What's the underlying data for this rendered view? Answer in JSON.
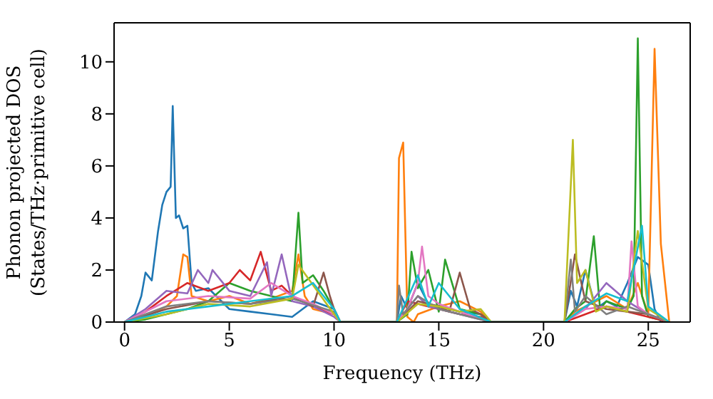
{
  "chart_data": {
    "type": "line",
    "xlabel": "Frequency (THz)",
    "ylabel": "Phonon projected DOS\n(States/THz·primitive cell)",
    "xlim": [
      -0.5,
      27
    ],
    "xticks": [
      0,
      5,
      10,
      15,
      20,
      25
    ],
    "ylim": [
      0,
      11.5
    ],
    "yticks": [
      0,
      2,
      4,
      6,
      8,
      10
    ],
    "legend": false,
    "marker": "none",
    "line_style": "solid",
    "series": [
      {
        "color": "#1f77b4",
        "x": [
          0,
          0.5,
          0.8,
          1,
          1.3,
          1.6,
          1.8,
          2,
          2.2,
          2.3,
          2.45,
          2.6,
          2.8,
          3,
          3.2,
          3.4,
          4,
          5,
          6,
          7,
          8,
          9,
          10,
          10.3,
          13,
          13.2,
          13.5,
          14,
          14.5,
          15,
          15.5,
          16,
          17,
          17.5,
          21,
          21.3,
          21.6,
          22,
          22.5,
          23,
          23.5,
          24,
          24.5,
          25,
          25.3,
          25.6,
          26
        ],
        "values": [
          0,
          0.3,
          1,
          1.9,
          1.6,
          3.5,
          4.5,
          5,
          5.2,
          8.3,
          4,
          4.1,
          3.6,
          3.7,
          1.5,
          1.2,
          1.3,
          0.5,
          0.4,
          0.3,
          0.2,
          0.8,
          0.5,
          0,
          0,
          1,
          0.5,
          1.5,
          0.7,
          0.6,
          0.5,
          0.4,
          0.3,
          0,
          0,
          1.2,
          0.6,
          2,
          0.5,
          0.8,
          0.6,
          1.5,
          2.5,
          2.2,
          0.5,
          0,
          0
        ]
      },
      {
        "color": "#ff7f0e",
        "x": [
          0,
          1,
          2,
          2.5,
          2.8,
          3,
          3.2,
          4,
          5,
          6,
          7,
          8,
          8.3,
          8.6,
          9,
          10,
          10.3,
          13,
          13.1,
          13.3,
          13.5,
          13.8,
          14,
          15,
          16,
          17,
          17.5,
          21,
          21.5,
          22,
          23,
          24,
          24.5,
          25,
          25.3,
          25.6,
          26
        ],
        "values": [
          0,
          0.2,
          0.6,
          1,
          2.6,
          2.5,
          1,
          0.8,
          1,
          0.7,
          0.9,
          1.2,
          2.6,
          1,
          0.5,
          0.3,
          0,
          0,
          6.3,
          6.9,
          0.2,
          0,
          0.3,
          0.6,
          0.8,
          0.4,
          0,
          0,
          0.4,
          0.6,
          1,
          0.5,
          1.5,
          0.3,
          10.5,
          3,
          0
        ]
      },
      {
        "color": "#2ca02c",
        "x": [
          0,
          1,
          2,
          3,
          4,
          5,
          6,
          7,
          8,
          8.3,
          8.5,
          9,
          9.5,
          10,
          10.3,
          13,
          13.5,
          13.7,
          14,
          14.5,
          15,
          15.3,
          16,
          17,
          17.5,
          21,
          21.5,
          22,
          22.4,
          22.7,
          23,
          24,
          24.3,
          24.5,
          24.7,
          25,
          26
        ],
        "values": [
          0,
          0.1,
          0.3,
          0.5,
          0.8,
          1.5,
          1.2,
          1,
          0.8,
          4.2,
          1.5,
          1.8,
          1.2,
          0.5,
          0,
          0,
          0.3,
          2.7,
          1.3,
          2,
          0.4,
          2.4,
          0.5,
          0.3,
          0,
          0,
          0.5,
          0.8,
          3.3,
          0.5,
          0.8,
          0.5,
          1,
          10.9,
          1,
          0.2,
          0
        ]
      },
      {
        "color": "#d62728",
        "x": [
          0,
          1,
          2,
          3,
          4,
          5,
          5.5,
          6,
          6.5,
          7,
          7.5,
          8,
          9,
          10,
          10.3,
          13,
          13.5,
          14,
          15,
          16,
          17,
          17.5,
          21,
          22,
          23,
          24,
          25,
          26
        ],
        "values": [
          0,
          0.4,
          1,
          1.5,
          1.2,
          1.5,
          2,
          1.6,
          2.7,
          1.2,
          1.4,
          1,
          0.6,
          0.3,
          0,
          0,
          0.8,
          0.7,
          0.5,
          0.3,
          0.2,
          0,
          0,
          0.3,
          0.6,
          0.4,
          0.2,
          0
        ]
      },
      {
        "color": "#9467bd",
        "x": [
          0,
          1,
          2,
          3,
          3.5,
          4,
          4.2,
          5,
          6,
          6.8,
          7,
          7.5,
          8,
          9,
          10,
          10.3,
          13,
          14,
          14.5,
          15,
          16,
          17.5,
          21,
          22,
          23,
          24,
          25,
          26
        ],
        "values": [
          0,
          0.5,
          1.2,
          1.1,
          2,
          1.5,
          2,
          1.2,
          1,
          2.3,
          1,
          2.6,
          0.8,
          0.6,
          0.2,
          0,
          0,
          1,
          0.6,
          0.5,
          0.3,
          0,
          0,
          0.5,
          1.5,
          0.8,
          0.3,
          0
        ]
      },
      {
        "color": "#8c564b",
        "x": [
          0,
          2,
          4,
          6,
          8,
          9,
          9.5,
          9.8,
          10,
          10.3,
          13,
          14,
          15,
          15.5,
          16,
          16.5,
          17,
          17.5,
          21,
          21.5,
          22,
          23,
          24,
          25,
          26
        ],
        "values": [
          0,
          0.5,
          0.8,
          0.7,
          1,
          0.6,
          1.9,
          1,
          0.5,
          0,
          0,
          0.8,
          0.6,
          0.4,
          1.9,
          0.5,
          0.3,
          0,
          0,
          2.6,
          0.8,
          0.5,
          0.4,
          0.3,
          0
        ]
      },
      {
        "color": "#e377c2",
        "x": [
          0,
          2,
          4,
          6,
          7,
          8,
          9,
          10,
          10.3,
          13,
          13.5,
          14,
          14.2,
          14.5,
          15,
          16,
          17.5,
          21,
          22,
          23,
          24,
          24.2,
          24.5,
          25,
          26
        ],
        "values": [
          0,
          0.8,
          1,
          0.9,
          1.5,
          1,
          0.7,
          0.3,
          0,
          0,
          0.5,
          1.5,
          2.9,
          1,
          0.7,
          0.4,
          0,
          0,
          0.5,
          0.6,
          0.5,
          3.1,
          0.6,
          0.3,
          0
        ]
      },
      {
        "color": "#7f7f7f",
        "x": [
          0,
          2,
          4,
          6,
          8,
          10,
          10.3,
          13,
          13.1,
          13.3,
          14,
          15,
          17.5,
          21,
          21.3,
          21.5,
          22,
          23,
          24,
          26
        ],
        "values": [
          0,
          0.6,
          0.8,
          0.7,
          0.9,
          0.4,
          0,
          0,
          1.4,
          0.3,
          1,
          0.5,
          0,
          0,
          2.4,
          0.4,
          1,
          0.3,
          0.6,
          0
        ]
      },
      {
        "color": "#bcbd22",
        "x": [
          0,
          2,
          4,
          6,
          8,
          8.3,
          10,
          10.3,
          13,
          14,
          15,
          16,
          17,
          17.5,
          21,
          21.4,
          21.6,
          22,
          22.5,
          23,
          24,
          24.5,
          25,
          26
        ],
        "values": [
          0,
          0.3,
          0.7,
          0.6,
          0.9,
          2.2,
          0.3,
          0,
          0,
          0.7,
          0.6,
          0.4,
          0.5,
          0,
          0,
          7,
          1.5,
          2,
          0.4,
          0.6,
          0.4,
          3.5,
          0.5,
          0
        ]
      },
      {
        "color": "#17becf",
        "x": [
          0,
          2,
          4,
          6,
          8,
          9,
          10,
          10.3,
          13,
          14,
          14.5,
          15,
          16,
          17.5,
          21,
          22,
          23,
          24,
          24.7,
          25,
          26
        ],
        "values": [
          0,
          0.4,
          0.6,
          0.8,
          1,
          1.5,
          0.5,
          0,
          0,
          1.8,
          0.6,
          1.5,
          0.5,
          0,
          0,
          0.6,
          1.1,
          0.8,
          3.7,
          0.6,
          0
        ]
      }
    ]
  }
}
